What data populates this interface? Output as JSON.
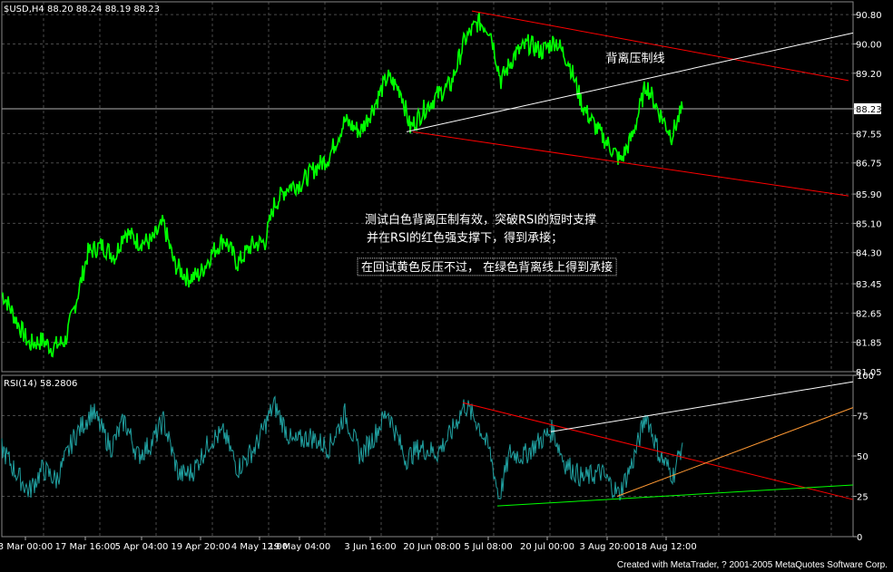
{
  "chart_data": [
    {
      "type": "line",
      "title": "$USD,H4  88.20 88.24 88.19 88.23",
      "current_price_label": "88.23",
      "ylim": [
        81.05,
        91.15
      ],
      "y_ticks": [
        "90.80",
        "90.00",
        "89.20",
        "88.23",
        "87.55",
        "86.75",
        "85.90",
        "85.10",
        "84.30",
        "83.45",
        "82.65",
        "81.85",
        "81.05"
      ],
      "x_ticks": [
        "3 Mar 00:00",
        "17 Mar 16:00",
        "5 Apr 04:00",
        "19 Apr 20:00",
        "4 May 12:00",
        "19 May 04:00",
        "3 Jun 16:00",
        "20 Jun 08:00",
        "5 Jul 08:00",
        "20 Jul 00:00",
        "3 Aug 20:00",
        "18 Aug 12:00"
      ],
      "grid": true,
      "series_color": "#00ff00",
      "anchor_points": [
        {
          "x": 0,
          "y": 83.2
        },
        {
          "x": 5,
          "y": 83.0
        },
        {
          "x": 15,
          "y": 82.5
        },
        {
          "x": 30,
          "y": 81.8
        },
        {
          "x": 45,
          "y": 81.9
        },
        {
          "x": 55,
          "y": 81.7
        },
        {
          "x": 70,
          "y": 81.9
        },
        {
          "x": 80,
          "y": 82.8
        },
        {
          "x": 95,
          "y": 84.3
        },
        {
          "x": 110,
          "y": 84.5
        },
        {
          "x": 125,
          "y": 84.2
        },
        {
          "x": 135,
          "y": 84.9
        },
        {
          "x": 150,
          "y": 84.6
        },
        {
          "x": 165,
          "y": 84.6
        },
        {
          "x": 178,
          "y": 85.1
        },
        {
          "x": 190,
          "y": 84.0
        },
        {
          "x": 205,
          "y": 83.6
        },
        {
          "x": 218,
          "y": 83.7
        },
        {
          "x": 232,
          "y": 84.3
        },
        {
          "x": 245,
          "y": 84.7
        },
        {
          "x": 260,
          "y": 84.0
        },
        {
          "x": 275,
          "y": 84.5
        },
        {
          "x": 290,
          "y": 84.6
        },
        {
          "x": 300,
          "y": 85.6
        },
        {
          "x": 315,
          "y": 86.1
        },
        {
          "x": 330,
          "y": 86.2
        },
        {
          "x": 345,
          "y": 86.6
        },
        {
          "x": 360,
          "y": 86.9
        },
        {
          "x": 378,
          "y": 87.9
        },
        {
          "x": 395,
          "y": 87.6
        },
        {
          "x": 410,
          "y": 88.3
        },
        {
          "x": 425,
          "y": 89.1
        },
        {
          "x": 440,
          "y": 88.7
        },
        {
          "x": 450,
          "y": 87.7
        },
        {
          "x": 465,
          "y": 88.2
        },
        {
          "x": 480,
          "y": 88.6
        },
        {
          "x": 495,
          "y": 88.9
        },
        {
          "x": 510,
          "y": 90.1
        },
        {
          "x": 525,
          "y": 90.6
        },
        {
          "x": 538,
          "y": 90.4
        },
        {
          "x": 550,
          "y": 89.0
        },
        {
          "x": 565,
          "y": 89.7
        },
        {
          "x": 580,
          "y": 90.0
        },
        {
          "x": 595,
          "y": 89.8
        },
        {
          "x": 610,
          "y": 90.1
        },
        {
          "x": 625,
          "y": 89.5
        },
        {
          "x": 640,
          "y": 88.3
        },
        {
          "x": 655,
          "y": 87.7
        },
        {
          "x": 670,
          "y": 87.2
        },
        {
          "x": 682,
          "y": 86.8
        },
        {
          "x": 695,
          "y": 87.5
        },
        {
          "x": 710,
          "y": 88.9
        },
        {
          "x": 725,
          "y": 88.1
        },
        {
          "x": 738,
          "y": 87.5
        },
        {
          "x": 750,
          "y": 88.23
        }
      ],
      "lines": [
        {
          "color": "#ff0000",
          "x1": 520,
          "y1": 90.9,
          "x2": 935,
          "y2": 89.0
        },
        {
          "color": "#ff0000",
          "x1": 455,
          "y1": 87.6,
          "x2": 935,
          "y2": 85.85
        },
        {
          "color": "#ffffff",
          "x1": 448,
          "y1": 87.6,
          "x2": 940,
          "y2": 90.3
        }
      ],
      "annotations": [
        {
          "text": "背离压制线",
          "x": 700,
          "y": 89.5,
          "align": "middle"
        },
        {
          "text": "测试白色背离压制有效，突破RSI的短时支撑",
          "x": 402,
          "y": 85.1,
          "align": "start"
        },
        {
          "text": "并在RSI的红色强支撑下，得到承接；",
          "x": 404,
          "y": 84.6,
          "align": "start"
        },
        {
          "text": "在回试黄色反压不过， 在绿色背离线上得到承接",
          "x": 398,
          "y": 83.8,
          "align": "start",
          "boxed": true
        }
      ]
    },
    {
      "type": "line",
      "title": "RSI(14)  58.2806",
      "ylim": [
        0,
        100
      ],
      "y_ticks": [
        "100",
        "75",
        "50",
        "25",
        "0"
      ],
      "grid": true,
      "series_color": "#20a0a0",
      "anchor_points": [
        {
          "x": 0,
          "y": 55
        },
        {
          "x": 15,
          "y": 40
        },
        {
          "x": 30,
          "y": 28
        },
        {
          "x": 45,
          "y": 42
        },
        {
          "x": 60,
          "y": 35
        },
        {
          "x": 80,
          "y": 62
        },
        {
          "x": 100,
          "y": 78
        },
        {
          "x": 120,
          "y": 55
        },
        {
          "x": 135,
          "y": 72
        },
        {
          "x": 150,
          "y": 50
        },
        {
          "x": 165,
          "y": 58
        },
        {
          "x": 178,
          "y": 72
        },
        {
          "x": 195,
          "y": 38
        },
        {
          "x": 210,
          "y": 40
        },
        {
          "x": 230,
          "y": 60
        },
        {
          "x": 245,
          "y": 64
        },
        {
          "x": 260,
          "y": 42
        },
        {
          "x": 280,
          "y": 56
        },
        {
          "x": 300,
          "y": 82
        },
        {
          "x": 320,
          "y": 58
        },
        {
          "x": 340,
          "y": 62
        },
        {
          "x": 360,
          "y": 55
        },
        {
          "x": 378,
          "y": 76
        },
        {
          "x": 395,
          "y": 50
        },
        {
          "x": 410,
          "y": 62
        },
        {
          "x": 425,
          "y": 78
        },
        {
          "x": 445,
          "y": 48
        },
        {
          "x": 460,
          "y": 55
        },
        {
          "x": 480,
          "y": 52
        },
        {
          "x": 495,
          "y": 64
        },
        {
          "x": 510,
          "y": 82
        },
        {
          "x": 525,
          "y": 70
        },
        {
          "x": 538,
          "y": 52
        },
        {
          "x": 548,
          "y": 24
        },
        {
          "x": 560,
          "y": 52
        },
        {
          "x": 575,
          "y": 50
        },
        {
          "x": 590,
          "y": 58
        },
        {
          "x": 607,
          "y": 66
        },
        {
          "x": 620,
          "y": 46
        },
        {
          "x": 640,
          "y": 36
        },
        {
          "x": 660,
          "y": 40
        },
        {
          "x": 680,
          "y": 26
        },
        {
          "x": 695,
          "y": 46
        },
        {
          "x": 710,
          "y": 76
        },
        {
          "x": 725,
          "y": 50
        },
        {
          "x": 740,
          "y": 38
        },
        {
          "x": 750,
          "y": 58.28
        }
      ],
      "lines": [
        {
          "color": "#ff0000",
          "x1": 510,
          "y1": 83,
          "x2": 940,
          "y2": 23
        },
        {
          "color": "#ffffff",
          "x1": 607,
          "y1": 65,
          "x2": 940,
          "y2": 96
        },
        {
          "color": "#00ff00",
          "x1": 548,
          "y1": 19,
          "x2": 940,
          "y2": 32
        },
        {
          "color": "#ff9933",
          "x1": 680,
          "y1": 25,
          "x2": 940,
          "y2": 80
        }
      ]
    }
  ],
  "footer": "Created with MetaTrader, ? 2001-2005 MetaQuotes Software Corp."
}
